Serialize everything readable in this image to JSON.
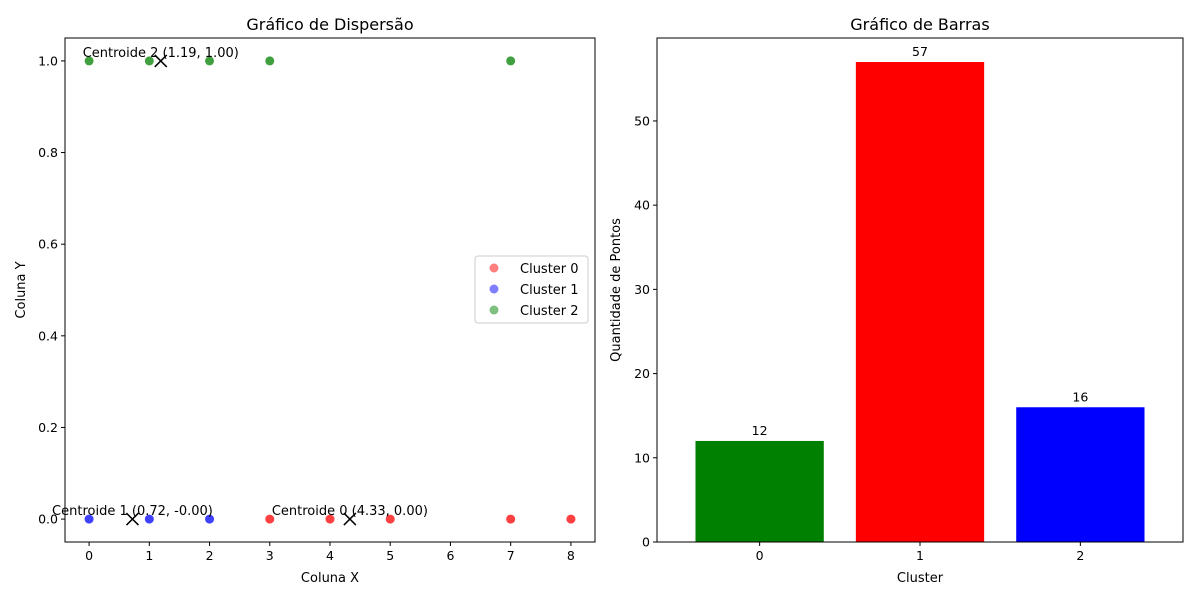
{
  "chart_data": [
    {
      "type": "scatter",
      "title": "Gráfico de Dispersão",
      "xlabel": "Coluna X",
      "ylabel": "Coluna Y",
      "xlim": [
        -0.4,
        8.4
      ],
      "ylim": [
        -0.05,
        1.05
      ],
      "xticks": [
        0,
        1,
        2,
        3,
        4,
        5,
        6,
        7,
        8
      ],
      "yticks": [
        0.0,
        0.2,
        0.4,
        0.6,
        0.8,
        1.0
      ],
      "xtick_labels": [
        "0",
        "1",
        "2",
        "3",
        "4",
        "5",
        "6",
        "7",
        "8"
      ],
      "ytick_labels": [
        "0.0",
        "0.2",
        "0.4",
        "0.6",
        "0.8",
        "1.0"
      ],
      "legend_position": "center-right",
      "series": [
        {
          "name": "Cluster 0",
          "color": "#ff0000",
          "points": [
            [
              3,
              0
            ],
            [
              4,
              0
            ],
            [
              5,
              0
            ],
            [
              7,
              0
            ],
            [
              8,
              0
            ]
          ]
        },
        {
          "name": "Cluster 1",
          "color": "#0000ff",
          "points": [
            [
              0,
              0
            ],
            [
              1,
              0
            ],
            [
              2,
              0
            ]
          ]
        },
        {
          "name": "Cluster 2",
          "color": "#008000",
          "points": [
            [
              0,
              1
            ],
            [
              1,
              1
            ],
            [
              2,
              1
            ],
            [
              3,
              1
            ],
            [
              7,
              1
            ]
          ]
        }
      ],
      "centroids": [
        {
          "x": 4.33,
          "y": 0.0,
          "label": "Centroide 0 (4.33, 0.00)"
        },
        {
          "x": 0.72,
          "y": 0.0,
          "label": "Centroide 1 (0.72, -0.00)"
        },
        {
          "x": 1.19,
          "y": 1.0,
          "label": "Centroide 2 (1.19, 1.00)"
        }
      ]
    },
    {
      "type": "bar",
      "title": "Gráfico de Barras",
      "xlabel": "Cluster",
      "ylabel": "Quantidade de Pontos",
      "categories": [
        "0",
        "1",
        "2"
      ],
      "values": [
        12,
        57,
        16
      ],
      "value_labels": [
        "12",
        "57",
        "16"
      ],
      "colors": [
        "#008000",
        "#ff0000",
        "#0000ff"
      ],
      "ylim": [
        0,
        59.85
      ],
      "yticks": [
        0,
        10,
        20,
        30,
        40,
        50
      ],
      "ytick_labels": [
        "0",
        "10",
        "20",
        "30",
        "40",
        "50"
      ]
    }
  ]
}
